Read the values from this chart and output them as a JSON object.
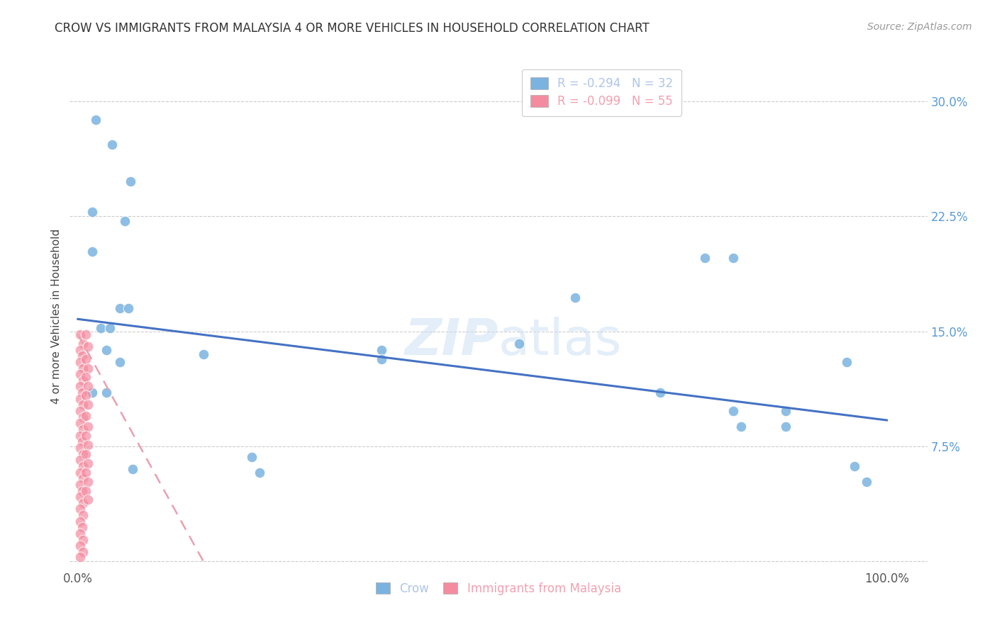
{
  "title": "CROW VS IMMIGRANTS FROM MALAYSIA 4 OR MORE VEHICLES IN HOUSEHOLD CORRELATION CHART",
  "source": "Source: ZipAtlas.com",
  "ylabel": "4 or more Vehicles in Household",
  "xlim": [
    -0.01,
    1.05
  ],
  "ylim": [
    -0.005,
    0.325
  ],
  "grid_color": "#cccccc",
  "background_color": "#ffffff",
  "legend_entries": [
    {
      "label": "R = -0.294   N = 32",
      "color": "#aec6e8"
    },
    {
      "label": "R = -0.099   N = 55",
      "color": "#f4a0b0"
    }
  ],
  "crow_color": "#7ab3e0",
  "malaysia_color": "#f48ca0",
  "crow_line_color": "#4472c4",
  "malaysia_line_color": "#e8a0b0",
  "crow_scatter": [
    [
      0.022,
      0.288
    ],
    [
      0.042,
      0.272
    ],
    [
      0.065,
      0.248
    ],
    [
      0.018,
      0.228
    ],
    [
      0.058,
      0.222
    ],
    [
      0.018,
      0.202
    ],
    [
      0.052,
      0.165
    ],
    [
      0.062,
      0.165
    ],
    [
      0.028,
      0.152
    ],
    [
      0.04,
      0.152
    ],
    [
      0.035,
      0.138
    ],
    [
      0.052,
      0.13
    ],
    [
      0.018,
      0.11
    ],
    [
      0.035,
      0.11
    ],
    [
      0.155,
      0.135
    ],
    [
      0.375,
      0.138
    ],
    [
      0.375,
      0.132
    ],
    [
      0.545,
      0.142
    ],
    [
      0.615,
      0.172
    ],
    [
      0.775,
      0.198
    ],
    [
      0.81,
      0.198
    ],
    [
      0.72,
      0.11
    ],
    [
      0.81,
      0.098
    ],
    [
      0.875,
      0.098
    ],
    [
      0.82,
      0.088
    ],
    [
      0.875,
      0.088
    ],
    [
      0.95,
      0.13
    ],
    [
      0.96,
      0.062
    ],
    [
      0.975,
      0.052
    ],
    [
      0.215,
      0.068
    ],
    [
      0.068,
      0.06
    ],
    [
      0.225,
      0.058
    ]
  ],
  "malaysia_scatter": [
    [
      0.003,
      0.148
    ],
    [
      0.006,
      0.142
    ],
    [
      0.003,
      0.138
    ],
    [
      0.005,
      0.134
    ],
    [
      0.003,
      0.13
    ],
    [
      0.006,
      0.126
    ],
    [
      0.003,
      0.122
    ],
    [
      0.006,
      0.118
    ],
    [
      0.003,
      0.114
    ],
    [
      0.005,
      0.11
    ],
    [
      0.003,
      0.106
    ],
    [
      0.006,
      0.102
    ],
    [
      0.003,
      0.098
    ],
    [
      0.006,
      0.094
    ],
    [
      0.003,
      0.09
    ],
    [
      0.006,
      0.086
    ],
    [
      0.003,
      0.082
    ],
    [
      0.005,
      0.078
    ],
    [
      0.003,
      0.074
    ],
    [
      0.006,
      0.07
    ],
    [
      0.003,
      0.066
    ],
    [
      0.006,
      0.062
    ],
    [
      0.003,
      0.058
    ],
    [
      0.006,
      0.054
    ],
    [
      0.003,
      0.05
    ],
    [
      0.005,
      0.046
    ],
    [
      0.003,
      0.042
    ],
    [
      0.006,
      0.038
    ],
    [
      0.003,
      0.034
    ],
    [
      0.006,
      0.03
    ],
    [
      0.003,
      0.026
    ],
    [
      0.005,
      0.022
    ],
    [
      0.003,
      0.018
    ],
    [
      0.006,
      0.014
    ],
    [
      0.003,
      0.01
    ],
    [
      0.006,
      0.006
    ],
    [
      0.003,
      0.003
    ],
    [
      0.01,
      0.148
    ],
    [
      0.012,
      0.14
    ],
    [
      0.01,
      0.132
    ],
    [
      0.012,
      0.126
    ],
    [
      0.01,
      0.12
    ],
    [
      0.012,
      0.114
    ],
    [
      0.01,
      0.108
    ],
    [
      0.012,
      0.102
    ],
    [
      0.01,
      0.095
    ],
    [
      0.012,
      0.088
    ],
    [
      0.01,
      0.082
    ],
    [
      0.012,
      0.076
    ],
    [
      0.01,
      0.07
    ],
    [
      0.012,
      0.064
    ],
    [
      0.01,
      0.058
    ],
    [
      0.012,
      0.052
    ],
    [
      0.01,
      0.046
    ],
    [
      0.012,
      0.04
    ]
  ],
  "crow_line_x": [
    0.0,
    1.0
  ],
  "crow_line_y": [
    0.158,
    0.092
  ],
  "malaysia_line_x": [
    0.0,
    0.155
  ],
  "malaysia_line_y": [
    0.148,
    0.0
  ]
}
